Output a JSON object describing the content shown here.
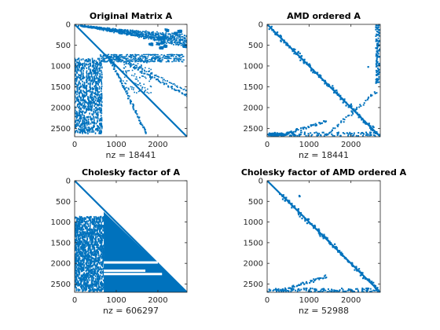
{
  "chart_data": [
    {
      "type": "heatmap",
      "title": "Original Matrix A",
      "xlabel": "nz = 18441",
      "xlim": [
        0,
        2700
      ],
      "ylim": [
        0,
        2700
      ],
      "xticks": [
        "0",
        "1000",
        "2000"
      ],
      "yticks": [
        "0",
        "500",
        "1000",
        "1500",
        "2000",
        "2500"
      ],
      "marker_color": "#0072BD",
      "nz": 18441
    },
    {
      "type": "heatmap",
      "title": "AMD ordered A",
      "xlabel": "nz = 18441",
      "xlim": [
        0,
        2700
      ],
      "ylim": [
        0,
        2700
      ],
      "xticks": [
        "0",
        "1000",
        "2000"
      ],
      "yticks": [
        "0",
        "500",
        "1000",
        "1500",
        "2000",
        "2500"
      ],
      "marker_color": "#0072BD",
      "nz": 18441
    },
    {
      "type": "heatmap",
      "title": "Cholesky factor of A",
      "xlabel": "nz = 606297",
      "xlim": [
        0,
        2700
      ],
      "ylim": [
        0,
        2700
      ],
      "xticks": [
        "0",
        "1000",
        "2000"
      ],
      "yticks": [
        "0",
        "500",
        "1000",
        "1500",
        "2000",
        "2500"
      ],
      "marker_color": "#0072BD",
      "nz": 606297
    },
    {
      "type": "heatmap",
      "title": "Cholesky factor of AMD ordered A",
      "xlabel": "nz = 52988",
      "xlim": [
        0,
        2700
      ],
      "ylim": [
        0,
        2700
      ],
      "xticks": [
        "0",
        "1000",
        "2000"
      ],
      "yticks": [
        "0",
        "500",
        "1000",
        "1500",
        "2000",
        "2500"
      ],
      "marker_color": "#0072BD",
      "nz": 52988
    }
  ]
}
